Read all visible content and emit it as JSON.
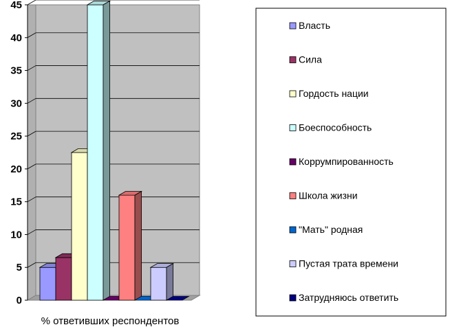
{
  "chart_data": {
    "type": "bar",
    "categories": [
      "% ответивших респондентов"
    ],
    "xlabel": "% ответивших респондентов",
    "ylim": [
      0,
      45
    ],
    "yticks": [
      0,
      5,
      10,
      15,
      20,
      25,
      30,
      35,
      40,
      45
    ],
    "grid": true,
    "legend_position": "right",
    "series": [
      {
        "name": "Власть",
        "values": [
          5
        ],
        "color": "#9999FF"
      },
      {
        "name": "Сила",
        "values": [
          6.5
        ],
        "color": "#993366"
      },
      {
        "name": "Гордость нации",
        "values": [
          22.5
        ],
        "color": "#FFFFCC"
      },
      {
        "name": "Боеспособность",
        "values": [
          45
        ],
        "color": "#CCFFFF"
      },
      {
        "name": "Коррумпированность",
        "values": [
          0
        ],
        "color": "#660066"
      },
      {
        "name": "Школа жизни",
        "values": [
          16
        ],
        "color": "#FF8080"
      },
      {
        "name": "\"Мать\" родная",
        "values": [
          0
        ],
        "color": "#0066CC"
      },
      {
        "name": "Пустая трата времени",
        "values": [
          5
        ],
        "color": "#CCCCFF"
      },
      {
        "name": "Затрудняюсь ответить",
        "values": [
          0
        ],
        "color": "#000080"
      }
    ],
    "plot_background": "#C0C0C0"
  }
}
